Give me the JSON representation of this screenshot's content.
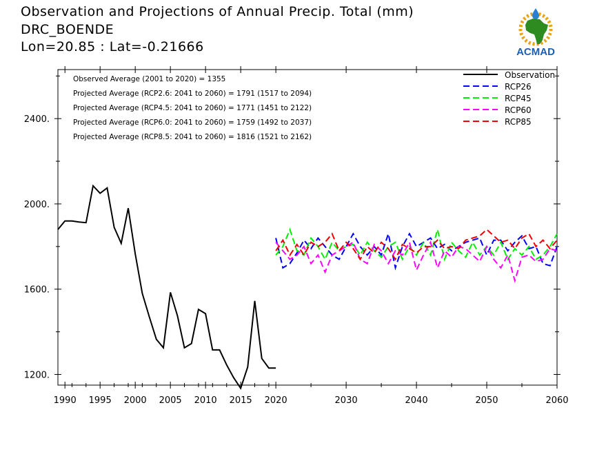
{
  "header": {
    "title": "Observation and Projections of Annual Precip. Total (mm)",
    "station": "DRC_BOENDE",
    "coords": "Lon=20.85 : Lat=-0.21666"
  },
  "logo": {
    "name": "ACMAD",
    "text": "ACMAD",
    "colors": {
      "text": "#1a5fb4",
      "africa": "#2e8b20",
      "sun": "#e8a21a",
      "drop": "#2a7fd4"
    }
  },
  "annotations": [
    "Observed Average (2001 to 2020) = 1355",
    "Projected Average (RCP2.6: 2041 to 2060) = 1791 (1517 to 2094)",
    "Projected Average (RCP4.5: 2041 to 2060) = 1771 (1451 to 2122)",
    "Projected Average (RCP6.0: 2041 to 2060) = 1759 (1492 to 2037)",
    "Projected Average (RCP8.5: 2041 to 2060) = 1816 (1521 to 2162)"
  ],
  "chart_data": {
    "type": "line",
    "title": "Observation and Projections of Annual Precip. Total (mm)",
    "xlim": [
      1989,
      2060
    ],
    "ylim": [
      1150,
      2630
    ],
    "y_ticks": [
      1200,
      1600,
      2000,
      2400
    ],
    "y_tick_labels": [
      "1200.",
      "1600.",
      "2000.",
      "2400."
    ],
    "x_ticks": [
      1990,
      1995,
      2000,
      2005,
      2010,
      2015,
      2020,
      2030,
      2040,
      2050,
      2060
    ],
    "x_tick_labels": [
      "1990",
      "1995",
      "2000",
      "2005",
      "2010",
      "2015",
      "2020",
      "2030",
      "2040",
      "2050",
      "2060"
    ],
    "legend_position": "top-right",
    "series": [
      {
        "name": "Observation",
        "color": "#000000",
        "dash": "solid",
        "x": [
          1989,
          1990,
          1991,
          1992,
          1993,
          1994,
          1995,
          1996,
          1997,
          1998,
          1999,
          2000,
          2001,
          2002,
          2003,
          2004,
          2005,
          2006,
          2007,
          2008,
          2009,
          2010,
          2011,
          2012,
          2013,
          2014,
          2015,
          2016,
          2017,
          2018,
          2019,
          2020
        ],
        "values": [
          1880,
          1920,
          1920,
          1915,
          1912,
          2085,
          2050,
          2075,
          1890,
          1815,
          1980,
          1765,
          1580,
          1470,
          1365,
          1325,
          1585,
          1475,
          1325,
          1345,
          1505,
          1485,
          1315,
          1315,
          1245,
          1185,
          1135,
          1235,
          1545,
          1275,
          1230,
          1230
        ]
      },
      {
        "name": "RCP26",
        "color": "#0000ff",
        "dash": "dashed",
        "x": [
          2020,
          2021,
          2022,
          2023,
          2024,
          2025,
          2026,
          2027,
          2028,
          2029,
          2030,
          2031,
          2032,
          2033,
          2034,
          2035,
          2036,
          2037,
          2038,
          2039,
          2040,
          2041,
          2042,
          2043,
          2044,
          2045,
          2046,
          2047,
          2048,
          2049,
          2050,
          2051,
          2052,
          2053,
          2054,
          2055,
          2056,
          2057,
          2058,
          2059,
          2060
        ],
        "values": [
          1840,
          1700,
          1720,
          1770,
          1830,
          1790,
          1840,
          1800,
          1760,
          1740,
          1800,
          1860,
          1800,
          1760,
          1800,
          1760,
          1860,
          1700,
          1800,
          1860,
          1800,
          1820,
          1840,
          1790,
          1810,
          1780,
          1800,
          1820,
          1830,
          1840,
          1760,
          1830,
          1830,
          1780,
          1820,
          1850,
          1790,
          1800,
          1720,
          1710,
          1800
        ]
      },
      {
        "name": "RCP45",
        "color": "#00ee00",
        "dash": "dashed",
        "x": [
          2020,
          2021,
          2022,
          2023,
          2024,
          2025,
          2026,
          2027,
          2028,
          2029,
          2030,
          2031,
          2032,
          2033,
          2034,
          2035,
          2036,
          2037,
          2038,
          2039,
          2040,
          2041,
          2042,
          2043,
          2044,
          2045,
          2046,
          2047,
          2048,
          2049,
          2050,
          2051,
          2052,
          2053,
          2054,
          2055,
          2056,
          2057,
          2058,
          2059,
          2060
        ],
        "values": [
          1760,
          1800,
          1880,
          1780,
          1760,
          1840,
          1800,
          1740,
          1820,
          1780,
          1800,
          1810,
          1760,
          1820,
          1780,
          1750,
          1800,
          1820,
          1740,
          1800,
          1760,
          1820,
          1760,
          1880,
          1740,
          1820,
          1780,
          1750,
          1820,
          1760,
          1800,
          1760,
          1820,
          1740,
          1790,
          1760,
          1800,
          1740,
          1760,
          1800,
          1860
        ]
      },
      {
        "name": "RCP60",
        "color": "#ff00ff",
        "dash": "dashed",
        "x": [
          2020,
          2021,
          2022,
          2023,
          2024,
          2025,
          2026,
          2027,
          2028,
          2029,
          2030,
          2031,
          2032,
          2033,
          2034,
          2035,
          2036,
          2037,
          2038,
          2039,
          2040,
          2041,
          2042,
          2043,
          2044,
          2045,
          2046,
          2047,
          2048,
          2049,
          2050,
          2051,
          2052,
          2053,
          2054,
          2055,
          2056,
          2057,
          2058,
          2059,
          2060
        ],
        "values": [
          1820,
          1780,
          1740,
          1760,
          1800,
          1720,
          1760,
          1680,
          1760,
          1780,
          1800,
          1820,
          1740,
          1720,
          1810,
          1780,
          1720,
          1780,
          1760,
          1820,
          1690,
          1760,
          1820,
          1700,
          1780,
          1750,
          1800,
          1790,
          1760,
          1730,
          1800,
          1740,
          1700,
          1760,
          1640,
          1750,
          1760,
          1730,
          1740,
          1790,
          1780
        ]
      },
      {
        "name": "RCP85",
        "color": "#ee0000",
        "dash": "dashed",
        "x": [
          2020,
          2021,
          2022,
          2023,
          2024,
          2025,
          2026,
          2027,
          2028,
          2029,
          2030,
          2031,
          2032,
          2033,
          2034,
          2035,
          2036,
          2037,
          2038,
          2039,
          2040,
          2041,
          2042,
          2043,
          2044,
          2045,
          2046,
          2047,
          2048,
          2049,
          2050,
          2051,
          2052,
          2053,
          2054,
          2055,
          2056,
          2057,
          2058,
          2059,
          2060
        ],
        "values": [
          1780,
          1830,
          1760,
          1810,
          1760,
          1820,
          1800,
          1820,
          1860,
          1780,
          1820,
          1790,
          1740,
          1800,
          1770,
          1820,
          1790,
          1740,
          1810,
          1790,
          1770,
          1800,
          1800,
          1830,
          1790,
          1800,
          1790,
          1830,
          1840,
          1850,
          1880,
          1850,
          1820,
          1830,
          1790,
          1840,
          1860,
          1800,
          1830,
          1790,
          1830
        ]
      }
    ]
  }
}
